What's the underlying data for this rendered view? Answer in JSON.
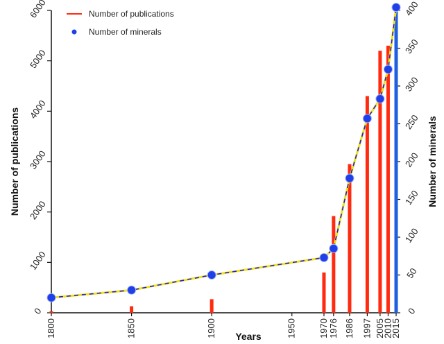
{
  "colors": {
    "publications_bar": "#ff2a10",
    "current_bar": "#1f5fe0",
    "minerals_marker": "#1f3fe8",
    "line_primary": "#f0e020",
    "line_dash": "#2020d8",
    "axis": "#111111",
    "highlight_tick": "#3a5fd0"
  },
  "legend": {
    "publications": "Number of publications",
    "minerals": "Number of minerals",
    "placement": "top-left"
  },
  "chart_data": {
    "type": "bar",
    "title": "",
    "xlabel": "Years",
    "ylabel_left": "Number of publications",
    "ylabel_right": "Number of minerals",
    "x_categories": [
      "1800",
      "1850",
      "1900",
      "1950",
      "1970",
      "1976",
      "1986",
      "1997",
      "2005",
      "2010",
      "2015"
    ],
    "x_year_values": [
      1800,
      1850,
      1900,
      1950,
      1970,
      1976,
      1986,
      1997,
      2005,
      2010,
      2015
    ],
    "highlighted_x_tick": "2015",
    "ylim_left": [
      0,
      6000
    ],
    "yticks_left": [
      0,
      1000,
      2000,
      3000,
      4000,
      5000,
      6000
    ],
    "ylim_right": [
      0,
      400
    ],
    "yticks_right": [
      0,
      50,
      100,
      150,
      200,
      250,
      300,
      350,
      400
    ],
    "grid": false,
    "series": [
      {
        "name": "Number of publications",
        "type": "bar",
        "axis": "left",
        "x": [
          1800,
          1850,
          1900,
          1970,
          1976,
          1986,
          1997,
          2005,
          2010,
          2015
        ],
        "values": [
          30,
          130,
          270,
          800,
          1920,
          2950,
          4300,
          5200,
          5300,
          6000
        ],
        "highlight_index": 9
      },
      {
        "name": "Number of minerals",
        "type": "line",
        "axis": "right",
        "x": [
          1800,
          1850,
          1900,
          1970,
          1976,
          1986,
          1997,
          2005,
          2010,
          2015
        ],
        "values": [
          20,
          30,
          50,
          73,
          85,
          178,
          257,
          283,
          322,
          404
        ]
      }
    ]
  }
}
